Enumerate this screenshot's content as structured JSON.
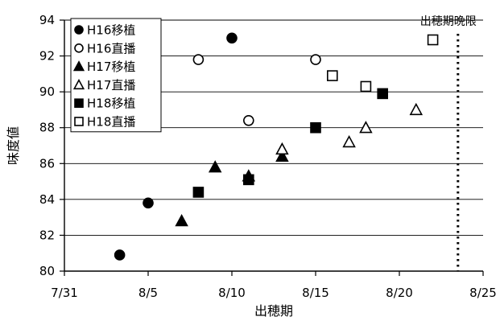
{
  "chart_data": {
    "type": "scatter",
    "xlabel": "出穂期",
    "ylabel": "味度値",
    "x_ticks": [
      "7/31",
      "8/5",
      "8/10",
      "8/15",
      "8/20",
      "8/25"
    ],
    "x_tick_values": [
      0,
      5,
      10,
      15,
      20,
      25
    ],
    "xlim": [
      0,
      25
    ],
    "ylim": [
      80,
      94
    ],
    "y_ticks": [
      80,
      82,
      84,
      86,
      88,
      90,
      92,
      94
    ],
    "grid": "horizontal",
    "legend_position": "top-left",
    "annotation": {
      "text": "出穂期晩限",
      "x": 23.5,
      "style": "dotted-vertical-line"
    },
    "series": [
      {
        "name": "H16移植",
        "marker": "circle-filled",
        "points": [
          [
            3.3,
            80.9
          ],
          [
            5.0,
            83.8
          ],
          [
            10.0,
            93.0
          ]
        ]
      },
      {
        "name": "H16直播",
        "marker": "circle-open",
        "points": [
          [
            8.0,
            91.8
          ],
          [
            11.0,
            88.4
          ],
          [
            15.0,
            91.8
          ]
        ]
      },
      {
        "name": "H17移植",
        "marker": "triangle-filled",
        "points": [
          [
            7.0,
            82.8
          ],
          [
            9.0,
            85.8
          ],
          [
            11.0,
            85.3
          ],
          [
            13.0,
            86.4
          ]
        ]
      },
      {
        "name": "H17直播",
        "marker": "triangle-open",
        "points": [
          [
            13.0,
            86.8
          ],
          [
            17.0,
            87.2
          ],
          [
            18.0,
            88.0
          ],
          [
            21.0,
            89.0
          ]
        ]
      },
      {
        "name": "H18移植",
        "marker": "square-filled",
        "points": [
          [
            8.0,
            84.4
          ],
          [
            11.0,
            85.1
          ],
          [
            15.0,
            88.0
          ],
          [
            19.0,
            89.9
          ]
        ]
      },
      {
        "name": "H18直播",
        "marker": "square-open",
        "points": [
          [
            16.0,
            90.9
          ],
          [
            18.0,
            90.3
          ],
          [
            22.0,
            92.9
          ]
        ]
      }
    ]
  }
}
